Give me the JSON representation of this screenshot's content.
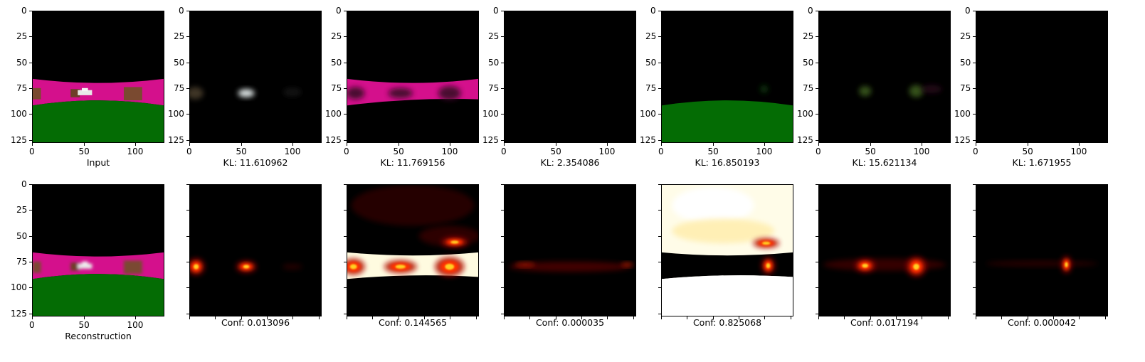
{
  "axis_ticks": [
    "0",
    "25",
    "50",
    "75",
    "100",
    "125"
  ],
  "x_ticks": [
    "0",
    "50",
    "100"
  ],
  "top_row": [
    {
      "label": "Input",
      "image": "input-scene"
    },
    {
      "label": "KL: 11.610962",
      "image": "slot-1-vehicle"
    },
    {
      "label": "KL: 11.769156",
      "image": "slot-2-road"
    },
    {
      "label": "KL: 2.354086",
      "image": "slot-3-empty"
    },
    {
      "label": "KL: 16.850193",
      "image": "slot-4-ground"
    },
    {
      "label": "KL: 15.621134",
      "image": "slot-5-objects"
    },
    {
      "label": "KL: 1.671955",
      "image": "slot-6-empty"
    }
  ],
  "bottom_row": [
    {
      "label": "Reconstruction",
      "image": "reconstruction-scene"
    },
    {
      "label": "Conf: 0.013096",
      "image": "mask-1-heatmap"
    },
    {
      "label": "Conf: 0.144565",
      "image": "mask-2-heatmap"
    },
    {
      "label": "Conf: 0.000035",
      "image": "mask-3-heatmap"
    },
    {
      "label": "Conf: 0.825068",
      "image": "mask-4-heatmap"
    },
    {
      "label": "Conf: 0.017194",
      "image": "mask-5-heatmap"
    },
    {
      "label": "Conf: 0.000042",
      "image": "mask-6-heatmap"
    }
  ],
  "colors": {
    "road": "#d4108c",
    "ground": "#046c04",
    "background": "#000000",
    "heat_hot": "#ffffff",
    "heat_mid": "#ff2a00"
  }
}
